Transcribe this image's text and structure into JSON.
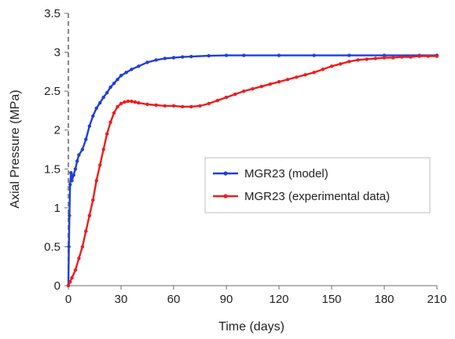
{
  "chart_data": {
    "type": "line",
    "xlabel": "Time (days)",
    "ylabel": "Axial Pressure (MPa)",
    "xlim": [
      0,
      210
    ],
    "ylim": [
      0,
      3.5
    ],
    "xticks": [
      0,
      30,
      60,
      90,
      120,
      150,
      180,
      210
    ],
    "yticks": [
      0,
      0.5,
      1,
      1.5,
      2,
      2.5,
      3,
      3.5
    ],
    "grid": false,
    "legend_position": "center-right",
    "reference_line": {
      "x": 0,
      "style": "dashed",
      "color": "#888888"
    },
    "series": [
      {
        "name": "MGR23 (model)",
        "color": "#1f3fd6",
        "x": [
          0,
          0.3,
          0.6,
          1,
          1.5,
          2,
          3,
          4,
          5,
          6,
          8,
          10,
          12,
          14,
          16,
          18,
          20,
          22,
          24,
          26,
          28,
          30,
          33,
          36,
          40,
          45,
          50,
          55,
          60,
          65,
          70,
          80,
          90,
          100,
          120,
          140,
          160,
          180,
          200,
          210
        ],
        "y": [
          0,
          0.5,
          0.9,
          1.3,
          1.45,
          1.35,
          1.42,
          1.5,
          1.6,
          1.68,
          1.75,
          1.88,
          2.05,
          2.18,
          2.28,
          2.35,
          2.42,
          2.48,
          2.55,
          2.6,
          2.65,
          2.7,
          2.74,
          2.78,
          2.82,
          2.87,
          2.9,
          2.92,
          2.93,
          2.94,
          2.945,
          2.955,
          2.96,
          2.96,
          2.96,
          2.96,
          2.96,
          2.96,
          2.96,
          2.96
        ]
      },
      {
        "name": "MGR23 (experimental data)",
        "color": "#ee1c1c",
        "x": [
          0,
          1,
          2,
          4,
          6,
          8,
          10,
          12,
          14,
          16,
          18,
          20,
          22,
          24,
          26,
          28,
          30,
          32,
          34,
          36,
          38,
          40,
          45,
          50,
          55,
          60,
          65,
          70,
          75,
          80,
          85,
          90,
          95,
          100,
          105,
          110,
          115,
          120,
          125,
          130,
          135,
          140,
          145,
          150,
          155,
          160,
          165,
          170,
          175,
          180,
          185,
          190,
          195,
          200,
          205,
          210
        ],
        "y": [
          0,
          0.05,
          0.1,
          0.2,
          0.35,
          0.5,
          0.7,
          0.9,
          1.1,
          1.35,
          1.55,
          1.75,
          1.95,
          2.1,
          2.22,
          2.3,
          2.34,
          2.36,
          2.37,
          2.37,
          2.36,
          2.35,
          2.33,
          2.32,
          2.31,
          2.31,
          2.3,
          2.3,
          2.31,
          2.34,
          2.38,
          2.42,
          2.46,
          2.5,
          2.53,
          2.56,
          2.59,
          2.62,
          2.65,
          2.68,
          2.71,
          2.74,
          2.78,
          2.82,
          2.85,
          2.88,
          2.9,
          2.91,
          2.92,
          2.93,
          2.93,
          2.94,
          2.94,
          2.95,
          2.95,
          2.95
        ]
      }
    ]
  }
}
